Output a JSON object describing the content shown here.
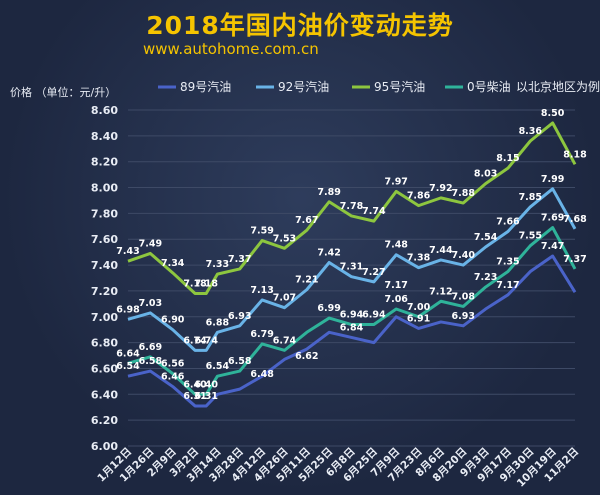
{
  "header": {
    "title": "2018年国内油价变动走势",
    "subtitle": "www.autohome.com.cn"
  },
  "chart_data": {
    "type": "line",
    "ylabel": "价格 （单位：元/升）",
    "note": "以北京地区为例",
    "ylim": [
      6.0,
      8.6
    ],
    "yticks": [
      "6.00",
      "6.20",
      "6.40",
      "6.60",
      "6.80",
      "7.00",
      "7.20",
      "7.40",
      "7.60",
      "7.80",
      "8.00",
      "8.20",
      "8.40",
      "8.60"
    ],
    "grid": true,
    "legend_position": "top",
    "categories": [
      "1月12日",
      "1月26日",
      "2月9日",
      "3月2日",
      "3月14日",
      "3月28日",
      "4月12日",
      "4月26日",
      "5月11日",
      "5月25日",
      "6月8日",
      "6月25日",
      "7月9日",
      "7月23日",
      "8月6日",
      "8月20日",
      "9月3日",
      "9月17日",
      "9月30日",
      "10月19日",
      "11月2日"
    ],
    "xtick_labels": [
      "1月12日",
      "1月26日",
      "2月9日",
      "3月2日",
      "3月14日",
      "3月28日",
      "4月12日",
      "4月26日",
      "5月11日",
      "5月25日",
      "6月8日",
      "6月25日",
      "7月9日",
      "7月23日",
      "8月6日",
      "8月20日",
      "9月3日",
      "9月17日",
      "9月30日",
      "10月19日",
      "11月2日"
    ],
    "x": [
      0,
      1,
      2,
      3,
      3.5,
      4,
      5,
      6,
      7,
      8,
      9,
      10,
      11,
      12,
      13,
      14,
      15,
      16,
      17,
      18,
      19,
      20
    ],
    "series": [
      {
        "name": "89号汽油",
        "color": "#4a63c9",
        "values": [
          6.54,
          6.58,
          6.46,
          6.31,
          6.31,
          6.4,
          6.44,
          6.54,
          6.67,
          6.75,
          6.88,
          6.84,
          6.8,
          7.0,
          6.91,
          6.96,
          6.93,
          7.06,
          7.17,
          7.35,
          7.47,
          7.19
        ],
        "labels": [
          "6.54",
          "6.58",
          "6.46",
          "6.31",
          "6.31",
          "",
          "",
          "",
          "",
          "",
          "",
          "",
          "",
          "",
          "6.91",
          "",
          "6.93",
          "",
          "",
          "",
          "",
          ""
        ]
      },
      {
        "name": "92号汽油",
        "color": "#69b3e7",
        "values": [
          6.98,
          7.03,
          6.9,
          6.74,
          6.74,
          6.88,
          6.93,
          7.13,
          7.07,
          7.21,
          7.42,
          7.31,
          7.27,
          7.48,
          7.38,
          7.44,
          7.4,
          7.54,
          7.66,
          7.85,
          7.99,
          7.68
        ],
        "labels": [
          "6.98",
          "7.03",
          "6.90",
          "6.74",
          "6.74",
          "6.88",
          "6.93",
          "7.13",
          "7.07",
          "7.21",
          "7.42",
          "7.31",
          "7.27",
          "7.48",
          "7.38",
          "7.44",
          "7.40",
          "7.54",
          "7.66",
          "7.85",
          "7.99",
          "7.68"
        ]
      },
      {
        "name": "95号汽油",
        "color": "#8dc63f",
        "values": [
          7.43,
          7.49,
          7.34,
          7.18,
          7.18,
          7.33,
          7.37,
          7.59,
          7.53,
          7.67,
          7.89,
          7.78,
          7.74,
          7.97,
          7.86,
          7.92,
          7.88,
          8.03,
          8.15,
          8.36,
          8.5,
          8.18
        ],
        "labels": [
          "7.43",
          "7.49",
          "7.34",
          "7.18",
          "7.18",
          "7.33",
          "7.37",
          "7.59",
          "7.53",
          "7.67",
          "7.89",
          "7.78",
          "7.74",
          "7.97",
          "7.86",
          "7.92",
          "7.88",
          "8.03",
          "8.15",
          "8.36",
          "8.50",
          "8.18"
        ]
      },
      {
        "name": "0号柴油",
        "color": "#2fb39a",
        "values": [
          6.64,
          6.69,
          6.56,
          6.4,
          6.4,
          6.54,
          6.58,
          6.79,
          6.74,
          6.88,
          6.99,
          6.94,
          6.94,
          7.06,
          7.0,
          7.12,
          7.08,
          7.23,
          7.35,
          7.55,
          7.69,
          7.37
        ],
        "labels": [
          "6.64",
          "6.69",
          "6.56",
          "6.40",
          "6.40",
          "6.54",
          "6.58",
          "6.79",
          "6.74",
          "",
          "6.99",
          "6.94",
          "6.94",
          "7.06",
          "7.00",
          "7.12",
          "7.08",
          "7.23",
          "7.35",
          "7.55",
          "7.69",
          "7.37"
        ]
      }
    ],
    "extra_labels": [
      "6.48",
      "6.62",
      "7.17",
      "6.84",
      "7.17",
      "7.47"
    ]
  }
}
